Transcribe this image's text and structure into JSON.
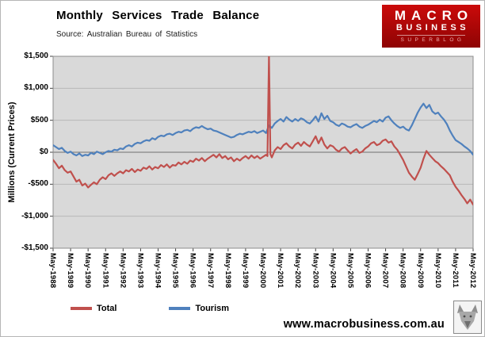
{
  "header": {
    "title": "Monthly Services Trade Balance",
    "source": "Source:  Australian Bureau of Statistics"
  },
  "logo": {
    "line1": "MACRO",
    "line2": "BUSINESS",
    "line3": "SUPERBLOG"
  },
  "footer": {
    "url": "www.macrobusiness.com.au"
  },
  "chart_data": {
    "type": "line",
    "title": "Monthly Services Trade Balance",
    "xlabel": "",
    "ylabel": "Millions (Current Prices)",
    "ylim": [
      -1500,
      1500
    ],
    "ytick_step": 500,
    "ytick_labels": [
      "$1,500",
      "$1,000",
      "$500",
      "$0",
      "-$500",
      "-$1,000",
      "-$1,500"
    ],
    "grid": true,
    "plot_bg": "#d9d9d9",
    "grid_color": "#b8b8b8",
    "zero_line_color": "#6e6e6e",
    "border_color": "#8c8c8c",
    "legend_position": "bottom",
    "x_range_months": [
      0,
      288
    ],
    "xtick_months": [
      0,
      12,
      24,
      36,
      48,
      60,
      72,
      84,
      96,
      108,
      120,
      132,
      144,
      156,
      168,
      180,
      192,
      204,
      216,
      228,
      240,
      252,
      264,
      276,
      288
    ],
    "xtick_labels": [
      "May-1988",
      "May-1989",
      "May-1990",
      "May-1991",
      "May-1992",
      "May-1993",
      "May-1994",
      "May-1995",
      "May-1996",
      "May-1997",
      "May-1998",
      "May-1999",
      "May-2000",
      "May-2001",
      "May-2002",
      "May-2003",
      "May-2004",
      "May-2005",
      "May-2006",
      "May-2007",
      "May-2008",
      "May-2009",
      "May-2010",
      "May-2011",
      "May-2012"
    ],
    "series": [
      {
        "name": "Total",
        "color": "#C0504D",
        "points": [
          [
            0,
            -120
          ],
          [
            2,
            -180
          ],
          [
            4,
            -250
          ],
          [
            6,
            -210
          ],
          [
            8,
            -280
          ],
          [
            10,
            -320
          ],
          [
            12,
            -300
          ],
          [
            14,
            -380
          ],
          [
            16,
            -460
          ],
          [
            18,
            -430
          ],
          [
            20,
            -520
          ],
          [
            22,
            -490
          ],
          [
            24,
            -550
          ],
          [
            26,
            -510
          ],
          [
            28,
            -470
          ],
          [
            30,
            -500
          ],
          [
            32,
            -430
          ],
          [
            34,
            -390
          ],
          [
            36,
            -420
          ],
          [
            38,
            -360
          ],
          [
            40,
            -330
          ],
          [
            42,
            -370
          ],
          [
            44,
            -330
          ],
          [
            46,
            -300
          ],
          [
            48,
            -330
          ],
          [
            50,
            -280
          ],
          [
            52,
            -300
          ],
          [
            54,
            -260
          ],
          [
            56,
            -310
          ],
          [
            58,
            -270
          ],
          [
            60,
            -290
          ],
          [
            62,
            -240
          ],
          [
            64,
            -260
          ],
          [
            66,
            -220
          ],
          [
            68,
            -270
          ],
          [
            70,
            -230
          ],
          [
            72,
            -250
          ],
          [
            74,
            -200
          ],
          [
            76,
            -230
          ],
          [
            78,
            -190
          ],
          [
            80,
            -240
          ],
          [
            82,
            -200
          ],
          [
            84,
            -210
          ],
          [
            86,
            -160
          ],
          [
            88,
            -190
          ],
          [
            90,
            -150
          ],
          [
            92,
            -180
          ],
          [
            94,
            -130
          ],
          [
            96,
            -150
          ],
          [
            98,
            -100
          ],
          [
            100,
            -130
          ],
          [
            102,
            -90
          ],
          [
            104,
            -140
          ],
          [
            106,
            -100
          ],
          [
            108,
            -70
          ],
          [
            110,
            -40
          ],
          [
            112,
            -80
          ],
          [
            114,
            -30
          ],
          [
            116,
            -90
          ],
          [
            118,
            -60
          ],
          [
            120,
            -110
          ],
          [
            122,
            -80
          ],
          [
            124,
            -140
          ],
          [
            126,
            -100
          ],
          [
            128,
            -130
          ],
          [
            130,
            -90
          ],
          [
            132,
            -60
          ],
          [
            134,
            -100
          ],
          [
            136,
            -50
          ],
          [
            138,
            -90
          ],
          [
            140,
            -60
          ],
          [
            142,
            -100
          ],
          [
            144,
            -70
          ],
          [
            146,
            -40
          ],
          [
            147,
            -60
          ],
          [
            148,
            1500
          ],
          [
            149,
            -30
          ],
          [
            150,
            -80
          ],
          [
            152,
            30
          ],
          [
            154,
            80
          ],
          [
            156,
            50
          ],
          [
            158,
            110
          ],
          [
            160,
            140
          ],
          [
            162,
            90
          ],
          [
            164,
            60
          ],
          [
            166,
            120
          ],
          [
            168,
            150
          ],
          [
            170,
            100
          ],
          [
            172,
            160
          ],
          [
            174,
            120
          ],
          [
            176,
            90
          ],
          [
            178,
            170
          ],
          [
            180,
            250
          ],
          [
            182,
            140
          ],
          [
            184,
            230
          ],
          [
            186,
            120
          ],
          [
            188,
            60
          ],
          [
            190,
            110
          ],
          [
            192,
            90
          ],
          [
            194,
            40
          ],
          [
            196,
            10
          ],
          [
            198,
            60
          ],
          [
            200,
            80
          ],
          [
            202,
            30
          ],
          [
            204,
            -20
          ],
          [
            206,
            20
          ],
          [
            208,
            50
          ],
          [
            210,
            -10
          ],
          [
            212,
            10
          ],
          [
            214,
            60
          ],
          [
            216,
            90
          ],
          [
            218,
            140
          ],
          [
            220,
            160
          ],
          [
            222,
            110
          ],
          [
            224,
            130
          ],
          [
            226,
            180
          ],
          [
            228,
            200
          ],
          [
            230,
            150
          ],
          [
            232,
            170
          ],
          [
            234,
            90
          ],
          [
            236,
            40
          ],
          [
            238,
            -40
          ],
          [
            240,
            -120
          ],
          [
            242,
            -220
          ],
          [
            244,
            -320
          ],
          [
            246,
            -380
          ],
          [
            248,
            -430
          ],
          [
            250,
            -340
          ],
          [
            252,
            -240
          ],
          [
            254,
            -100
          ],
          [
            256,
            20
          ],
          [
            258,
            -40
          ],
          [
            260,
            -90
          ],
          [
            262,
            -140
          ],
          [
            264,
            -170
          ],
          [
            266,
            -220
          ],
          [
            268,
            -260
          ],
          [
            270,
            -310
          ],
          [
            272,
            -360
          ],
          [
            274,
            -460
          ],
          [
            276,
            -540
          ],
          [
            278,
            -600
          ],
          [
            280,
            -670
          ],
          [
            282,
            -730
          ],
          [
            284,
            -800
          ],
          [
            286,
            -740
          ],
          [
            288,
            -820
          ]
        ]
      },
      {
        "name": "Tourism",
        "color": "#4F81BD",
        "points": [
          [
            0,
            110
          ],
          [
            2,
            80
          ],
          [
            4,
            50
          ],
          [
            6,
            70
          ],
          [
            8,
            20
          ],
          [
            10,
            -10
          ],
          [
            12,
            10
          ],
          [
            14,
            -30
          ],
          [
            16,
            -50
          ],
          [
            18,
            -20
          ],
          [
            20,
            -60
          ],
          [
            22,
            -40
          ],
          [
            24,
            -50
          ],
          [
            26,
            -10
          ],
          [
            28,
            -30
          ],
          [
            30,
            10
          ],
          [
            32,
            -10
          ],
          [
            34,
            -30
          ],
          [
            36,
            0
          ],
          [
            38,
            20
          ],
          [
            40,
            10
          ],
          [
            42,
            40
          ],
          [
            44,
            30
          ],
          [
            46,
            60
          ],
          [
            48,
            50
          ],
          [
            50,
            90
          ],
          [
            52,
            110
          ],
          [
            54,
            90
          ],
          [
            56,
            130
          ],
          [
            58,
            150
          ],
          [
            60,
            140
          ],
          [
            62,
            170
          ],
          [
            64,
            190
          ],
          [
            66,
            180
          ],
          [
            68,
            220
          ],
          [
            70,
            200
          ],
          [
            72,
            240
          ],
          [
            74,
            260
          ],
          [
            76,
            250
          ],
          [
            78,
            280
          ],
          [
            80,
            290
          ],
          [
            82,
            270
          ],
          [
            84,
            300
          ],
          [
            86,
            320
          ],
          [
            88,
            310
          ],
          [
            90,
            340
          ],
          [
            92,
            350
          ],
          [
            94,
            330
          ],
          [
            96,
            370
          ],
          [
            98,
            390
          ],
          [
            100,
            380
          ],
          [
            102,
            410
          ],
          [
            104,
            380
          ],
          [
            106,
            360
          ],
          [
            108,
            370
          ],
          [
            110,
            340
          ],
          [
            112,
            330
          ],
          [
            114,
            310
          ],
          [
            116,
            290
          ],
          [
            118,
            270
          ],
          [
            120,
            250
          ],
          [
            122,
            230
          ],
          [
            124,
            240
          ],
          [
            126,
            270
          ],
          [
            128,
            290
          ],
          [
            130,
            280
          ],
          [
            132,
            300
          ],
          [
            134,
            320
          ],
          [
            136,
            310
          ],
          [
            138,
            330
          ],
          [
            140,
            300
          ],
          [
            142,
            320
          ],
          [
            144,
            340
          ],
          [
            146,
            300
          ],
          [
            148,
            420
          ],
          [
            150,
            380
          ],
          [
            152,
            450
          ],
          [
            154,
            490
          ],
          [
            156,
            520
          ],
          [
            158,
            480
          ],
          [
            160,
            550
          ],
          [
            162,
            510
          ],
          [
            164,
            480
          ],
          [
            166,
            520
          ],
          [
            168,
            490
          ],
          [
            170,
            530
          ],
          [
            172,
            510
          ],
          [
            174,
            470
          ],
          [
            176,
            450
          ],
          [
            178,
            500
          ],
          [
            180,
            560
          ],
          [
            182,
            480
          ],
          [
            184,
            610
          ],
          [
            186,
            520
          ],
          [
            188,
            570
          ],
          [
            190,
            490
          ],
          [
            192,
            470
          ],
          [
            194,
            430
          ],
          [
            196,
            410
          ],
          [
            198,
            450
          ],
          [
            200,
            430
          ],
          [
            202,
            400
          ],
          [
            204,
            390
          ],
          [
            206,
            420
          ],
          [
            208,
            440
          ],
          [
            210,
            400
          ],
          [
            212,
            380
          ],
          [
            214,
            410
          ],
          [
            216,
            430
          ],
          [
            218,
            460
          ],
          [
            220,
            490
          ],
          [
            222,
            470
          ],
          [
            224,
            510
          ],
          [
            226,
            480
          ],
          [
            228,
            540
          ],
          [
            230,
            560
          ],
          [
            232,
            500
          ],
          [
            234,
            450
          ],
          [
            236,
            410
          ],
          [
            238,
            380
          ],
          [
            240,
            400
          ],
          [
            242,
            360
          ],
          [
            244,
            340
          ],
          [
            246,
            420
          ],
          [
            248,
            520
          ],
          [
            250,
            620
          ],
          [
            252,
            700
          ],
          [
            254,
            760
          ],
          [
            256,
            690
          ],
          [
            258,
            740
          ],
          [
            260,
            640
          ],
          [
            262,
            600
          ],
          [
            264,
            620
          ],
          [
            266,
            560
          ],
          [
            268,
            510
          ],
          [
            270,
            440
          ],
          [
            272,
            340
          ],
          [
            274,
            260
          ],
          [
            276,
            190
          ],
          [
            278,
            160
          ],
          [
            280,
            130
          ],
          [
            282,
            90
          ],
          [
            284,
            60
          ],
          [
            286,
            20
          ],
          [
            288,
            -40
          ]
        ]
      }
    ]
  }
}
